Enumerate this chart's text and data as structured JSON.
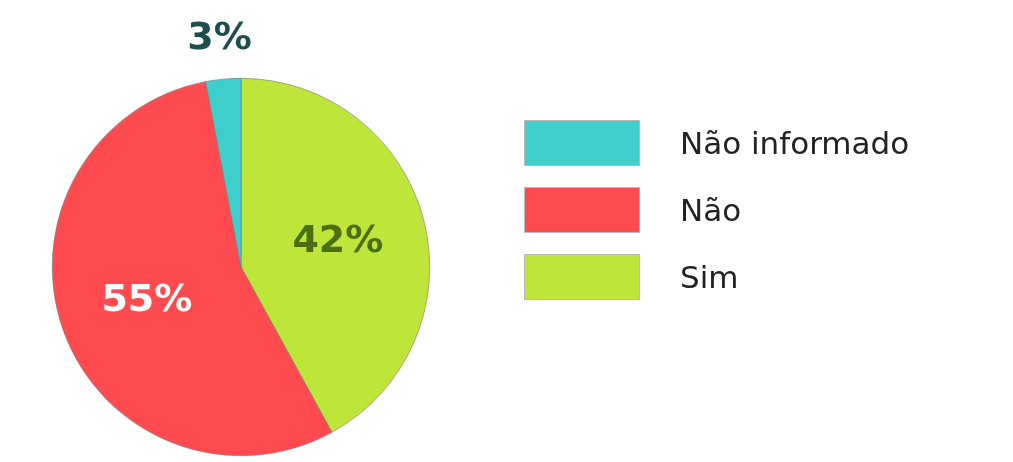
{
  "chart_data": {
    "type": "pie",
    "categories": [
      "Sim",
      "Não",
      "Não informado"
    ],
    "values": [
      42,
      55,
      3
    ],
    "colors": [
      "#bde53a",
      "#ff4b4f",
      "#3ccfcc"
    ],
    "value_labels": [
      "42%",
      "55%",
      "3%"
    ],
    "legend": "right"
  }
}
